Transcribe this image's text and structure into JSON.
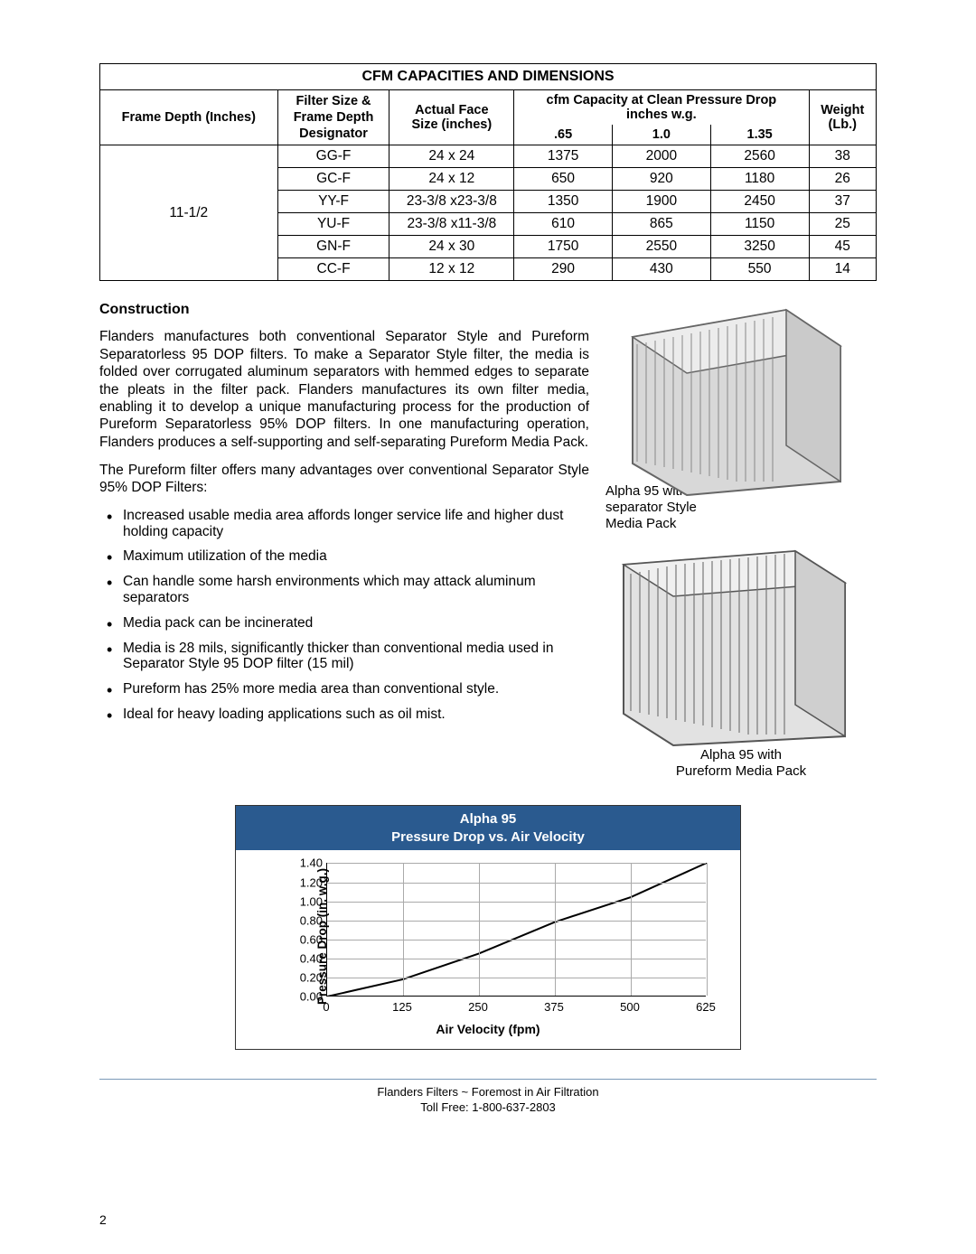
{
  "table": {
    "title": "CFM CAPACITIES AND DIMENSIONS",
    "header": {
      "col1": "Frame Depth (Inches)",
      "col2_top": "Filter Size &",
      "col2_mid": "Frame Depth",
      "col2_bot": "Designator",
      "col3_top": "Actual Face",
      "col3_bot": "Size (inches)",
      "col4_top": "cfm Capacity at Clean Pressure Drop",
      "col4_bot": "inches w.g.",
      "sub1": ".65",
      "sub2": "1.0",
      "sub3": "1.35",
      "col5_top": "Weight",
      "col5_bot": "(Lb.)"
    },
    "frame_depth": "11-1/2",
    "rows": [
      {
        "d": "GG-F",
        "size": "24 x 24",
        "c65": "1375",
        "c10": "2000",
        "c135": "2560",
        "wt": "38"
      },
      {
        "d": "GC-F",
        "size": "24 x 12",
        "c65": "650",
        "c10": "920",
        "c135": "1180",
        "wt": "26"
      },
      {
        "d": "YY-F",
        "size": "23-3/8 x23-3/8",
        "c65": "1350",
        "c10": "1900",
        "c135": "2450",
        "wt": "37"
      },
      {
        "d": "YU-F",
        "size": "23-3/8 x11-3/8",
        "c65": "610",
        "c10": "865",
        "c135": "1150",
        "wt": "25"
      },
      {
        "d": "GN-F",
        "size": "24 x 30",
        "c65": "1750",
        "c10": "2550",
        "c135": "3250",
        "wt": "45"
      },
      {
        "d": "CC-F",
        "size": "12 x 12",
        "c65": "290",
        "c10": "430",
        "c135": "550",
        "wt": "14"
      }
    ]
  },
  "section": {
    "heading": "Construction",
    "para1": "Flanders manufactures both conventional Separator Style and Pureform Separatorless 95 DOP filters.  To make a Separator Style filter, the media is folded over corrugated aluminum separators with hemmed edges to separate the pleats in the filter pack.  Flanders manufactures its own filter media, enabling it  to develop a unique manufacturing process for the production of Pureform Separatorless 95% DOP filters.  In one manufacturing operation, Flanders produces a self-supporting and self-separating Pureform Media Pack.",
    "para2": "The Pureform filter offers many advantages over conventional Separator Style 95% DOP Filters:",
    "bullets": [
      "Increased usable media area affords longer service life and higher dust holding capacity",
      "Maximum utilization of the media",
      "Can handle some harsh environments which may attack aluminum separators",
      "Media pack can be incinerated",
      "Media is 28 mils, significantly thicker than conventional media used in Separator Style 95 DOP filter (15 mil)",
      "Pureform has 25% more media area than conventional style.",
      "Ideal for heavy loading applications such as oil mist."
    ]
  },
  "figures": {
    "cap1a": "Alpha 95 with",
    "cap1b": "separator Style",
    "cap1c": "Media Pack",
    "cap2a": "Alpha 95 with",
    "cap2b": "Pureform Media Pack"
  },
  "chart": {
    "title1": "Alpha 95",
    "title2": "Pressure Drop vs. Air Velocity",
    "ylabel": "Pressure Drop (in. w.g.)",
    "xlabel": "Air Velocity (fpm)",
    "xticks": [
      "0",
      "125",
      "250",
      "375",
      "500",
      "625"
    ],
    "yticks": [
      "0.00",
      "0.20",
      "0.40",
      "0.60",
      "0.80",
      "1.00",
      "1.20",
      "1.40"
    ],
    "xlim": [
      0,
      625
    ],
    "ylim": [
      0,
      1.4
    ],
    "line_points": [
      [
        0,
        0
      ],
      [
        125,
        0.18
      ],
      [
        250,
        0.45
      ],
      [
        375,
        0.78
      ],
      [
        500,
        1.04
      ],
      [
        625,
        1.4
      ]
    ],
    "grid_color": "#aaaaaa",
    "line_color": "#000000",
    "header_bg": "#2a5a8f",
    "header_fg": "#ffffff"
  },
  "footer": {
    "line1": "Flanders Filters ~ Foremost in Air Filtration",
    "line2": "Toll Free: 1-800-637-2803"
  },
  "page": "2"
}
